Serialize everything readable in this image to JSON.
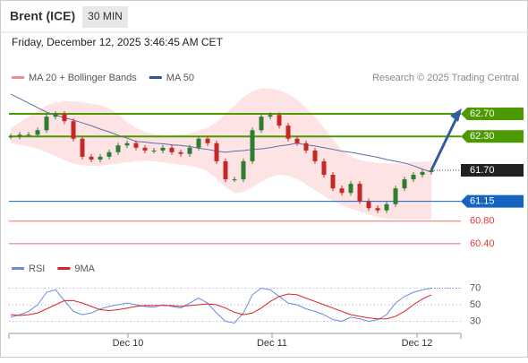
{
  "header": {
    "title": "Brent (ICE)",
    "interval": "30 MIN",
    "datetime": "Friday, December 12, 2025 3:46:45 AM CET"
  },
  "chart_data": [
    {
      "type": "candlestick",
      "legend": [
        {
          "name": "MA 20 + Bollinger Bands",
          "color": "#f08c8c"
        },
        {
          "name": "MA 50",
          "color": "#2f5597"
        }
      ],
      "source": "Research © 2025 Trading Central",
      "ylim": [
        60.2,
        63.4
      ],
      "xticks": [
        {
          "value": 13.1,
          "label": "Dec 10"
        },
        {
          "value": 29.2,
          "label": "Dec 11"
        },
        {
          "value": 45.4,
          "label": "Dec 12"
        }
      ],
      "series": [
        {
          "name": "Price",
          "color_up": "#2e7d32",
          "color_down": "#c62828",
          "values": [
            62.3,
            62.33,
            62.33,
            62.41,
            62.65,
            62.7,
            62.57,
            62.26,
            61.94,
            61.89,
            61.94,
            62.02,
            62.14,
            62.18,
            62.1,
            62.05,
            62.05,
            62.1,
            62.02,
            61.99,
            62.1,
            62.26,
            62.18,
            61.86,
            61.54,
            61.54,
            61.86,
            62.41,
            62.65,
            62.68,
            62.49,
            62.26,
            62.18,
            62.05,
            61.86,
            61.62,
            61.38,
            61.3,
            61.46,
            61.15,
            61.03,
            60.99,
            61.1,
            61.38,
            61.54,
            61.62,
            61.67,
            61.7
          ]
        },
        {
          "name": "MA 50",
          "color": "#5a6fa8",
          "values": [
            63.05,
            62.97,
            62.89,
            62.81,
            62.73,
            62.68,
            62.63,
            62.59,
            62.54,
            62.49,
            62.43,
            62.38,
            62.32,
            62.27,
            62.21,
            62.2,
            62.18,
            62.17,
            62.15,
            62.14,
            62.12,
            62.09,
            62.07,
            62.04,
            62.02,
            62.04,
            62.05,
            62.07,
            62.08,
            62.1,
            62.13,
            62.15,
            62.18,
            62.15,
            62.13,
            62.1,
            62.07,
            62.04,
            62.02,
            61.99,
            61.96,
            61.93,
            61.89,
            61.86,
            61.83,
            61.78,
            61.72,
            61.67
          ]
        }
      ],
      "bands": {
        "color": "#fde3e3",
        "upper": [
          62.45,
          62.55,
          62.65,
          62.75,
          62.85,
          62.9,
          62.92,
          62.92,
          62.9,
          62.88,
          62.85,
          62.8,
          62.7,
          62.55,
          62.45,
          62.38,
          62.34,
          62.32,
          62.32,
          62.33,
          62.35,
          62.4,
          62.45,
          62.55,
          62.7,
          62.85,
          63.0,
          63.1,
          63.15,
          63.15,
          63.12,
          63.05,
          62.95,
          62.8,
          62.65,
          62.45,
          62.25,
          62.05,
          61.95,
          61.88,
          61.85,
          61.83,
          61.82,
          61.82,
          61.83,
          61.85,
          61.85,
          61.86
        ],
        "lower": [
          62.18,
          62.15,
          62.12,
          62.08,
          62.02,
          61.95,
          61.88,
          61.82,
          61.79,
          61.78,
          61.78,
          61.8,
          61.82,
          61.84,
          61.86,
          61.87,
          61.86,
          61.84,
          61.82,
          61.8,
          61.78,
          61.75,
          61.68,
          61.55,
          61.4,
          61.3,
          61.32,
          61.4,
          61.5,
          61.58,
          61.62,
          61.6,
          61.55,
          61.45,
          61.35,
          61.25,
          61.15,
          61.08,
          61.02,
          60.97,
          60.92,
          60.87,
          60.84,
          60.83,
          60.83,
          60.83,
          60.83,
          60.83
        ]
      },
      "levels": [
        {
          "value": 62.7,
          "label": "62.70",
          "color": "#4c9a00",
          "style": "box"
        },
        {
          "value": 62.3,
          "label": "62.30",
          "color": "#4c9a00",
          "style": "box"
        },
        {
          "value": 61.7,
          "label": "61.70",
          "color": "#222222",
          "style": "current"
        },
        {
          "value": 61.15,
          "label": "61.15",
          "color": "#1565c0",
          "style": "box"
        },
        {
          "value": 60.8,
          "label": "60.80",
          "color": "#e57373",
          "style": "text"
        },
        {
          "value": 60.4,
          "label": "60.40",
          "color": "#e57373",
          "style": "text"
        }
      ]
    },
    {
      "type": "line",
      "ylim": [
        20,
        80
      ],
      "yticks": [
        30,
        50,
        70
      ],
      "grid": true,
      "series": [
        {
          "name": "RSI",
          "color": "#6a8cdc",
          "values": [
            35,
            38,
            42,
            50,
            65,
            68,
            55,
            42,
            38,
            40,
            45,
            48,
            50,
            52,
            50,
            48,
            47,
            50,
            48,
            46,
            52,
            58,
            52,
            40,
            30,
            28,
            40,
            62,
            70,
            68,
            60,
            52,
            50,
            45,
            42,
            38,
            32,
            30,
            35,
            33,
            30,
            32,
            38,
            52,
            60,
            65,
            68,
            70
          ]
        },
        {
          "name": "9MA",
          "color": "#e02020",
          "values": [
            38,
            37,
            38,
            40,
            45,
            50,
            55,
            55,
            52,
            48,
            44,
            43,
            44,
            46,
            48,
            49,
            49,
            49,
            49,
            48,
            49,
            50,
            51,
            50,
            46,
            41,
            38,
            40,
            46,
            54,
            60,
            63,
            62,
            58,
            54,
            50,
            46,
            42,
            38,
            36,
            34,
            33,
            33,
            36,
            42,
            50,
            57,
            62
          ]
        }
      ]
    }
  ]
}
